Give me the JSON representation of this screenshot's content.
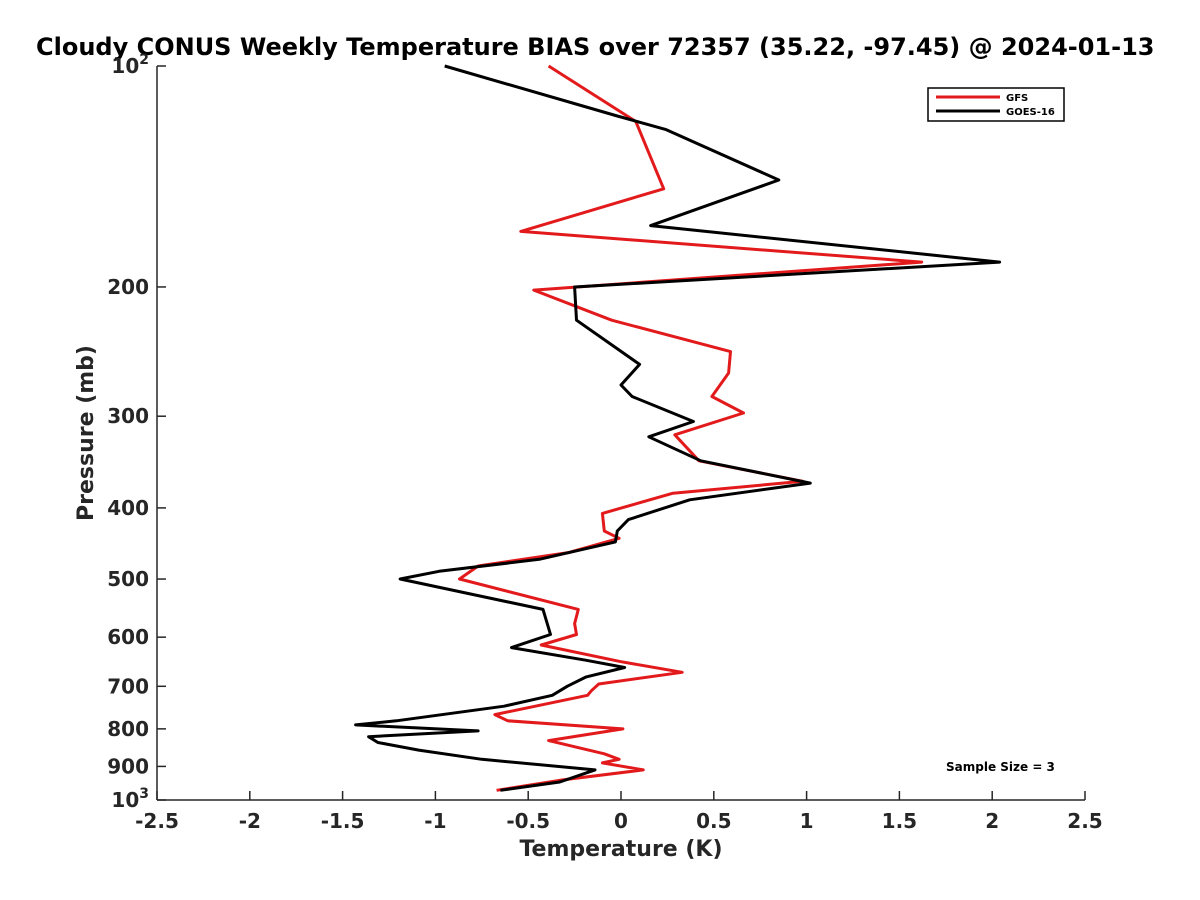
{
  "chart_data": {
    "type": "line",
    "title": "Cloudy CONUS Weekly Temperature BIAS over 72357 (35.22, -97.45) @ 2024-01-13",
    "xlabel": "Temperature (K)",
    "ylabel": "Pressure (mb)",
    "xlim": [
      -2.5,
      2.5
    ],
    "ylim": [
      100,
      1000
    ],
    "y_scale": "log",
    "y_reversed": true,
    "grid": false,
    "legend_position": "top-right",
    "x_ticks": [
      -2.5,
      -2,
      -1.5,
      -1,
      -0.5,
      0,
      0.5,
      1,
      1.5,
      2,
      2.5
    ],
    "x_tick_labels": [
      "-2.5",
      "-2",
      "-1.5",
      "-1",
      "-0.5",
      "0",
      "0.5",
      "1",
      "1.5",
      "2",
      "2.5"
    ],
    "y_ticks": [
      100,
      200,
      300,
      400,
      500,
      600,
      700,
      800,
      900,
      1000
    ],
    "y_tick_labels": [
      {
        "base": "10",
        "exp": "2"
      },
      {
        "base": "200"
      },
      {
        "base": "300"
      },
      {
        "base": "400"
      },
      {
        "base": "500"
      },
      {
        "base": "600"
      },
      {
        "base": "700"
      },
      {
        "base": "800"
      },
      {
        "base": "900"
      },
      {
        "base": "10",
        "exp": "3"
      }
    ],
    "annotation": "Sample Size = 3",
    "series": [
      {
        "name": "GFS",
        "color": "#e31a1c",
        "points": [
          [
            -0.39,
            100
          ],
          [
            0.08,
            119
          ],
          [
            0.23,
            147
          ],
          [
            -0.54,
            168
          ],
          [
            1.62,
            185
          ],
          [
            -0.47,
            202
          ],
          [
            -0.05,
            222
          ],
          [
            0.59,
            245
          ],
          [
            0.58,
            262
          ],
          [
            0.49,
            282
          ],
          [
            0.66,
            297
          ],
          [
            0.29,
            318
          ],
          [
            0.42,
            345
          ],
          [
            0.98,
            368
          ],
          [
            0.28,
            382
          ],
          [
            -0.1,
            407
          ],
          [
            -0.09,
            430
          ],
          [
            -0.01,
            440
          ],
          [
            -0.28,
            460
          ],
          [
            -0.77,
            480
          ],
          [
            -0.87,
            500
          ],
          [
            -0.23,
            550
          ],
          [
            -0.25,
            575
          ],
          [
            -0.24,
            595
          ],
          [
            -0.43,
            615
          ],
          [
            0.0,
            648
          ],
          [
            0.33,
            670
          ],
          [
            -0.12,
            695
          ],
          [
            -0.16,
            710
          ],
          [
            -0.18,
            720
          ],
          [
            -0.68,
            765
          ],
          [
            -0.61,
            780
          ],
          [
            0.01,
            800
          ],
          [
            -0.39,
            830
          ],
          [
            -0.09,
            865
          ],
          [
            -0.01,
            880
          ],
          [
            -0.1,
            890
          ],
          [
            0.12,
            910
          ],
          [
            -0.33,
            940
          ],
          [
            -0.67,
            970
          ]
        ]
      },
      {
        "name": "GOES-16",
        "color": "#000000",
        "points": [
          [
            -0.95,
            100
          ],
          [
            -0.02,
            117
          ],
          [
            0.24,
            122
          ],
          [
            0.85,
            143
          ],
          [
            0.16,
            165
          ],
          [
            2.04,
            185
          ],
          [
            -0.25,
            200
          ],
          [
            -0.24,
            222
          ],
          [
            0.1,
            255
          ],
          [
            0.0,
            272
          ],
          [
            0.06,
            282
          ],
          [
            0.39,
            305
          ],
          [
            0.15,
            320
          ],
          [
            0.43,
            345
          ],
          [
            1.02,
            370
          ],
          [
            0.37,
            390
          ],
          [
            0.04,
            415
          ],
          [
            -0.02,
            430
          ],
          [
            -0.03,
            445
          ],
          [
            -0.44,
            470
          ],
          [
            -0.98,
            488
          ],
          [
            -1.19,
            500
          ],
          [
            -0.42,
            550
          ],
          [
            -0.38,
            595
          ],
          [
            -0.59,
            620
          ],
          [
            -0.19,
            645
          ],
          [
            0.02,
            660
          ],
          [
            -0.19,
            680
          ],
          [
            -0.29,
            700
          ],
          [
            -0.37,
            720
          ],
          [
            -0.63,
            745
          ],
          [
            -1.21,
            780
          ],
          [
            -1.43,
            790
          ],
          [
            -0.77,
            805
          ],
          [
            -1.36,
            820
          ],
          [
            -1.31,
            835
          ],
          [
            -1.09,
            855
          ],
          [
            -0.75,
            880
          ],
          [
            -0.14,
            910
          ],
          [
            -0.33,
            945
          ],
          [
            -0.65,
            970
          ]
        ]
      }
    ]
  }
}
